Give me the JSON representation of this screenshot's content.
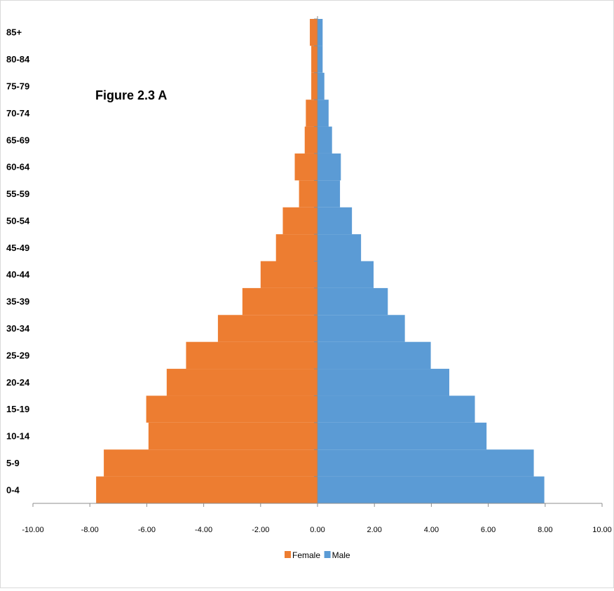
{
  "chart_data": {
    "type": "bar",
    "orientation": "horizontal",
    "stacked": true,
    "annotation": "Figure 2.3 A",
    "categories": [
      "0-4",
      "5-9",
      "10-14",
      "15-19",
      "20-24",
      "25-29",
      "30-34",
      "35-39",
      "40-44",
      "45-49",
      "50-54",
      "55-59",
      "60-64",
      "65-69",
      "70-74",
      "75-79",
      "80-84",
      "85+"
    ],
    "series": [
      {
        "name": "Female",
        "color": "#ED7D31",
        "values": [
          -7.78,
          -7.51,
          -5.94,
          -6.02,
          -5.3,
          -4.62,
          -3.5,
          -2.64,
          -2.0,
          -1.46,
          -1.22,
          -0.65,
          -0.8,
          -0.45,
          -0.41,
          -0.22,
          -0.22,
          -0.27
        ]
      },
      {
        "name": "Male",
        "color": "#5B9BD5",
        "values": [
          7.97,
          7.6,
          5.94,
          5.53,
          4.63,
          3.98,
          3.07,
          2.47,
          1.97,
          1.53,
          1.21,
          0.79,
          0.82,
          0.51,
          0.39,
          0.24,
          0.18,
          0.18
        ]
      }
    ],
    "x_ticks": [
      "-10.00",
      "-8.00",
      "-6.00",
      "-4.00",
      "-2.00",
      "0.00",
      "2.00",
      "4.00",
      "6.00",
      "8.00",
      "10.00"
    ],
    "xlim": [
      -10,
      10
    ],
    "xlabel": "",
    "ylabel": "",
    "grid": false,
    "legend_position": "bottom"
  }
}
